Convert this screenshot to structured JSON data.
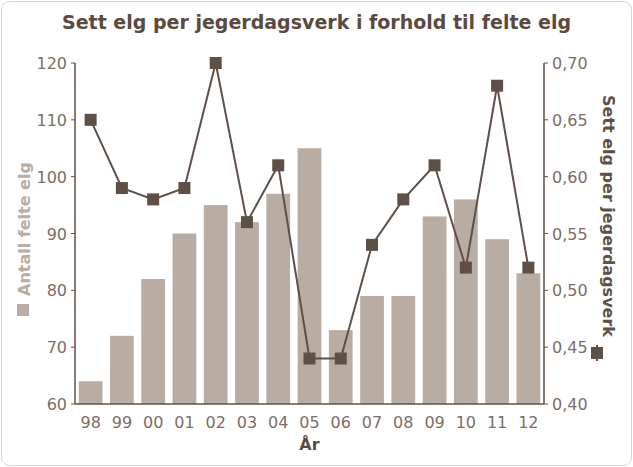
{
  "chart_data": {
    "type": "bar",
    "title": "Sett elg per jegerdagsverk i forhold til felte elg",
    "x_label": "År",
    "categories": [
      "98",
      "99",
      "00",
      "01",
      "02",
      "03",
      "04",
      "05",
      "06",
      "07",
      "08",
      "09",
      "10",
      "11",
      "12"
    ],
    "series": [
      {
        "name": "Antall felte elg",
        "type": "bar",
        "color": "#b9aca2",
        "values": [
          64,
          72,
          82,
          90,
          95,
          92,
          97,
          105,
          73,
          79,
          79,
          93,
          96,
          89,
          83
        ]
      },
      {
        "name": "Sett elg per jegerdagsverk",
        "type": "line",
        "axis": "y2",
        "color": "#5f5047",
        "marker": "square",
        "line_style": "solid",
        "values": [
          0.65,
          0.59,
          0.58,
          0.59,
          0.7,
          0.56,
          0.61,
          0.44,
          0.44,
          0.54,
          0.58,
          0.61,
          0.52,
          0.68,
          0.52
        ]
      }
    ],
    "ylim": [
      60,
      120
    ],
    "yticks": [
      60,
      70,
      80,
      90,
      100,
      110,
      120
    ],
    "y2lim": [
      0.4,
      0.7
    ],
    "y2ticks": [
      {
        "value": 0.4,
        "label": "0,40"
      },
      {
        "value": 0.45,
        "label": "0,45"
      },
      {
        "value": 0.5,
        "label": "0,50"
      },
      {
        "value": 0.55,
        "label": "0,55"
      },
      {
        "value": 0.6,
        "label": "0,60"
      },
      {
        "value": 0.65,
        "label": "0,65"
      },
      {
        "value": 0.7,
        "label": "0,70"
      }
    ],
    "grid": false
  }
}
